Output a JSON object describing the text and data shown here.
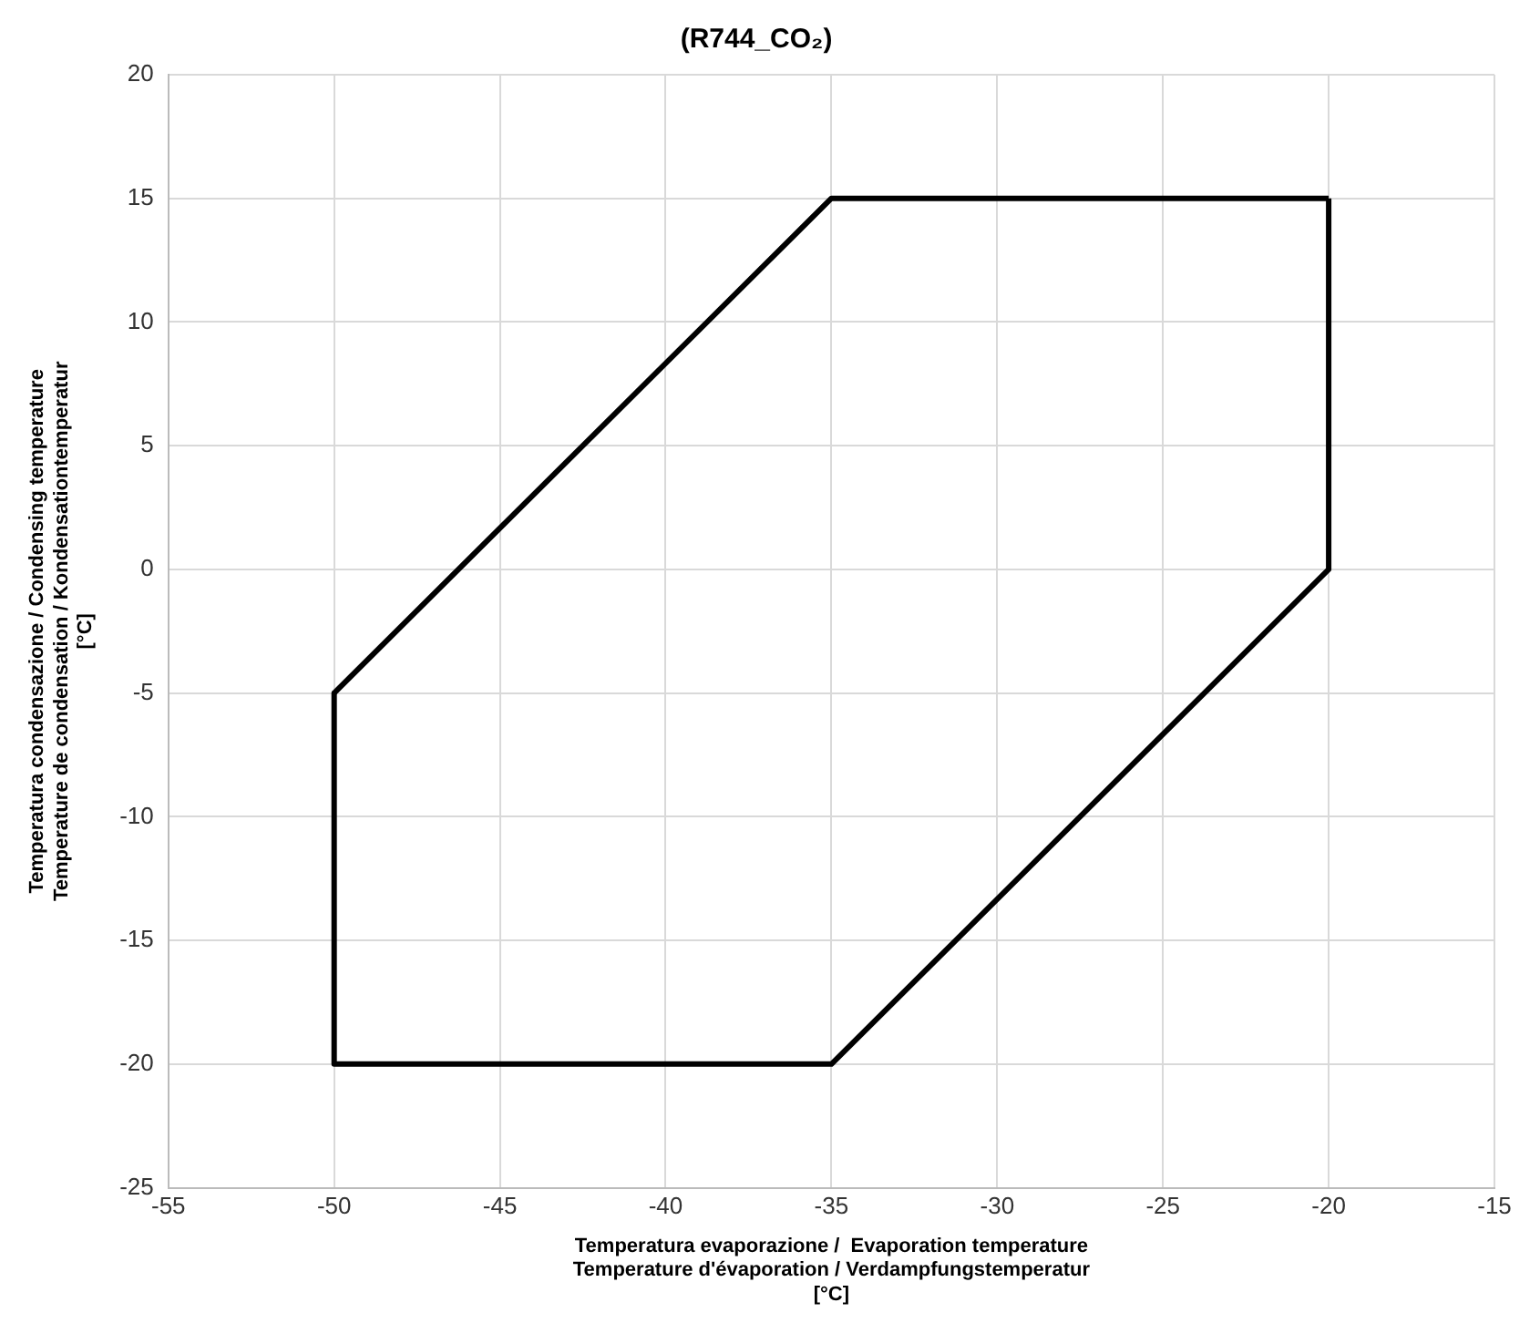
{
  "chart_data": {
    "type": "line",
    "title": "(R744_CO₂)",
    "xlabel": "Temperatura evaporazione /  Evaporation temperature\nTemperature d'évaporation / Verdampfungstemperatur\n[°C]",
    "ylabel": "Temperatura condensazione / Condensing temperature\nTemperature de condensation / Kondensationtemperatur\n[°C]",
    "series": [
      {
        "color": "#000000",
        "x": [
          -50,
          -50,
          -35,
          -20,
          -20
        ],
        "values": [
          -5,
          -20,
          -20,
          0,
          15
        ]
      },
      {
        "color": "#000000",
        "x": [
          -50,
          -35,
          -20
        ],
        "values": [
          -5,
          15,
          15
        ]
      }
    ],
    "xlim": [
      -55,
      -15
    ],
    "xticks": [
      -55,
      -50,
      -45,
      -40,
      -35,
      -30,
      -25,
      -20,
      -15
    ],
    "ylim": [
      -25,
      20
    ],
    "yticks": [
      -25,
      -20,
      -15,
      -10,
      -5,
      0,
      5,
      10,
      15,
      20
    ],
    "grid": true,
    "legend": false,
    "marker": "none",
    "line_style": "solid"
  }
}
